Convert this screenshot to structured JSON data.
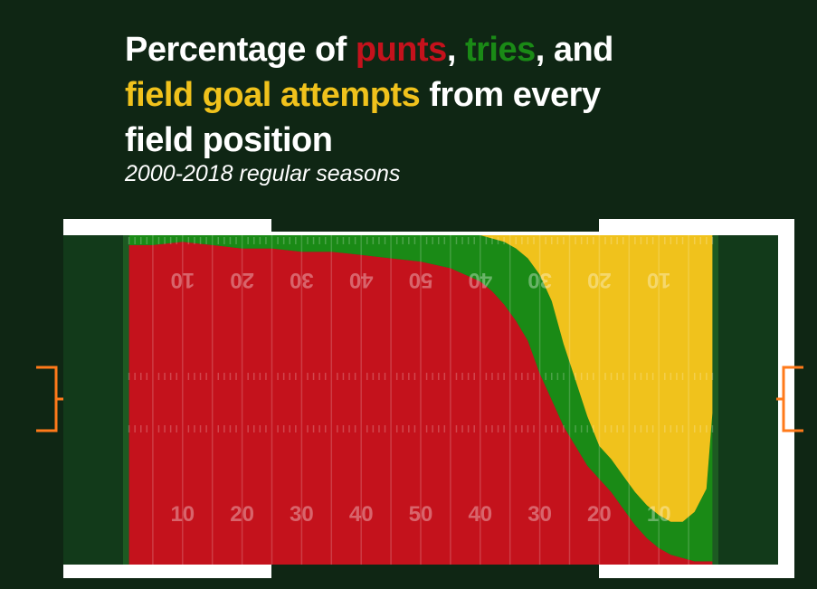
{
  "title": {
    "part1": "Percentage of ",
    "punts": "punts",
    "sep1": ", ",
    "tries": "tries",
    "sep2": ", and",
    "fga": "field goal attempts",
    "part2": " from every",
    "line3": "field position"
  },
  "subtitle": "2000-2018 regular seasons",
  "colors": {
    "background": "#0f2614",
    "punts": "#c4121c",
    "tries": "#1a8a16",
    "field_goals": "#f0c21c",
    "field_border": "#ffffff",
    "endzone": "#123a1a",
    "goalpost": "#ff7a1a"
  },
  "chart_data": {
    "type": "area",
    "stacked": true,
    "ylim": [
      0,
      100
    ],
    "x_tick_labels_bottom": [
      "10",
      "20",
      "30",
      "40",
      "50",
      "40",
      "30",
      "20",
      "10"
    ],
    "x_tick_labels_top": [
      "10",
      "20",
      "30",
      "40",
      "50",
      "40",
      "30",
      "20",
      "10"
    ],
    "x": [
      1,
      5,
      10,
      15,
      20,
      25,
      30,
      35,
      40,
      45,
      50,
      55,
      60,
      62,
      64,
      66,
      68,
      70,
      72,
      74,
      76,
      78,
      80,
      82,
      84,
      86,
      88,
      90,
      92,
      94,
      96,
      98,
      99
    ],
    "series": [
      {
        "name": "punts",
        "values": [
          97,
          97,
          98,
          97,
          96,
          96,
          95,
          95,
          94,
          93,
          92,
          90,
          86,
          83,
          79,
          74,
          68,
          58,
          50,
          42,
          36,
          30,
          26,
          22,
          17,
          12,
          8,
          5,
          3,
          2,
          1,
          1,
          1
        ]
      },
      {
        "name": "tries",
        "values": [
          3,
          3,
          2,
          3,
          4,
          4,
          5,
          5,
          6,
          7,
          8,
          10,
          14,
          16,
          19,
          22,
          25,
          30,
          30,
          25,
          20,
          15,
          10,
          10,
          10,
          10,
          10,
          10,
          10,
          11,
          15,
          22,
          45
        ]
      },
      {
        "name": "field goal attempts",
        "values": [
          0,
          0,
          0,
          0,
          0,
          0,
          0,
          0,
          0,
          0,
          0,
          0,
          0,
          1,
          2,
          4,
          7,
          12,
          20,
          33,
          44,
          55,
          64,
          68,
          73,
          78,
          82,
          85,
          87,
          87,
          84,
          77,
          54
        ]
      }
    ]
  }
}
